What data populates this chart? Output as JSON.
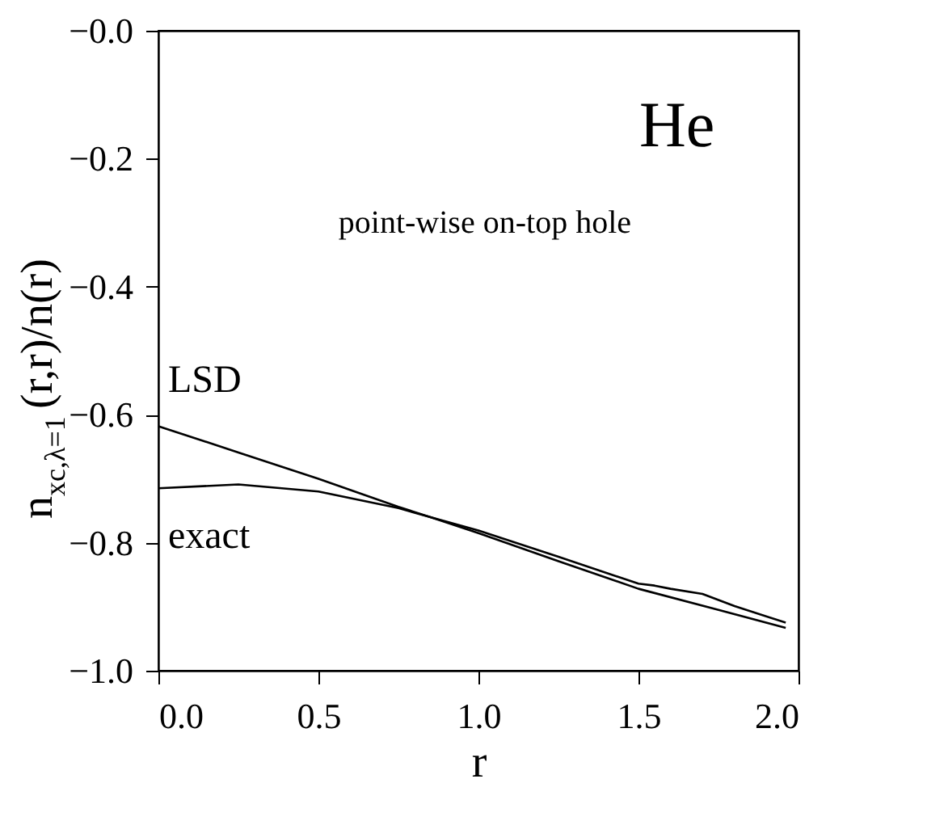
{
  "chart_data": {
    "type": "line",
    "xlabel": "r",
    "ylabel": "n$_{xc,λ=1}$(r,r)/n(r)",
    "annotations": [
      "He",
      "point-wise on-top hole"
    ],
    "series": [
      {
        "name": "LSD",
        "color": "#000000",
        "x": [
          0,
          0.25,
          0.5,
          0.75,
          0.85,
          1.0,
          1.25,
          1.5,
          1.75,
          1.96
        ],
        "values": [
          -0.618,
          -0.659,
          -0.7,
          -0.744,
          -0.76,
          -0.785,
          -0.829,
          -0.872,
          -0.905,
          -0.933
        ]
      },
      {
        "name": "exact",
        "color": "#000000",
        "x": [
          0,
          0.25,
          0.5,
          0.75,
          0.85,
          1.0,
          1.25,
          1.5,
          1.55,
          1.6,
          1.7,
          1.8,
          1.96
        ],
        "values": [
          -0.715,
          -0.709,
          -0.72,
          -0.746,
          -0.76,
          -0.781,
          -0.822,
          -0.864,
          -0.867,
          -0.872,
          -0.88,
          -0.899,
          -0.925
        ]
      }
    ],
    "xlim": [
      0,
      2.0
    ],
    "ylim": [
      -1.0,
      0
    ],
    "xticks": [
      {
        "value": 0,
        "label": "0.0"
      },
      0.5,
      {
        "value": 1,
        "label": "1.0"
      },
      1.5,
      {
        "value": 2,
        "label": "2.0"
      }
    ],
    "yticks": [
      {
        "value": -1,
        "label": "−1.0"
      },
      -0.8,
      -0.6,
      -0.4,
      -0.2,
      {
        "value": 0,
        "label": "−0.0"
      }
    ],
    "grid": false,
    "line_style": "solid",
    "marker": "none"
  }
}
